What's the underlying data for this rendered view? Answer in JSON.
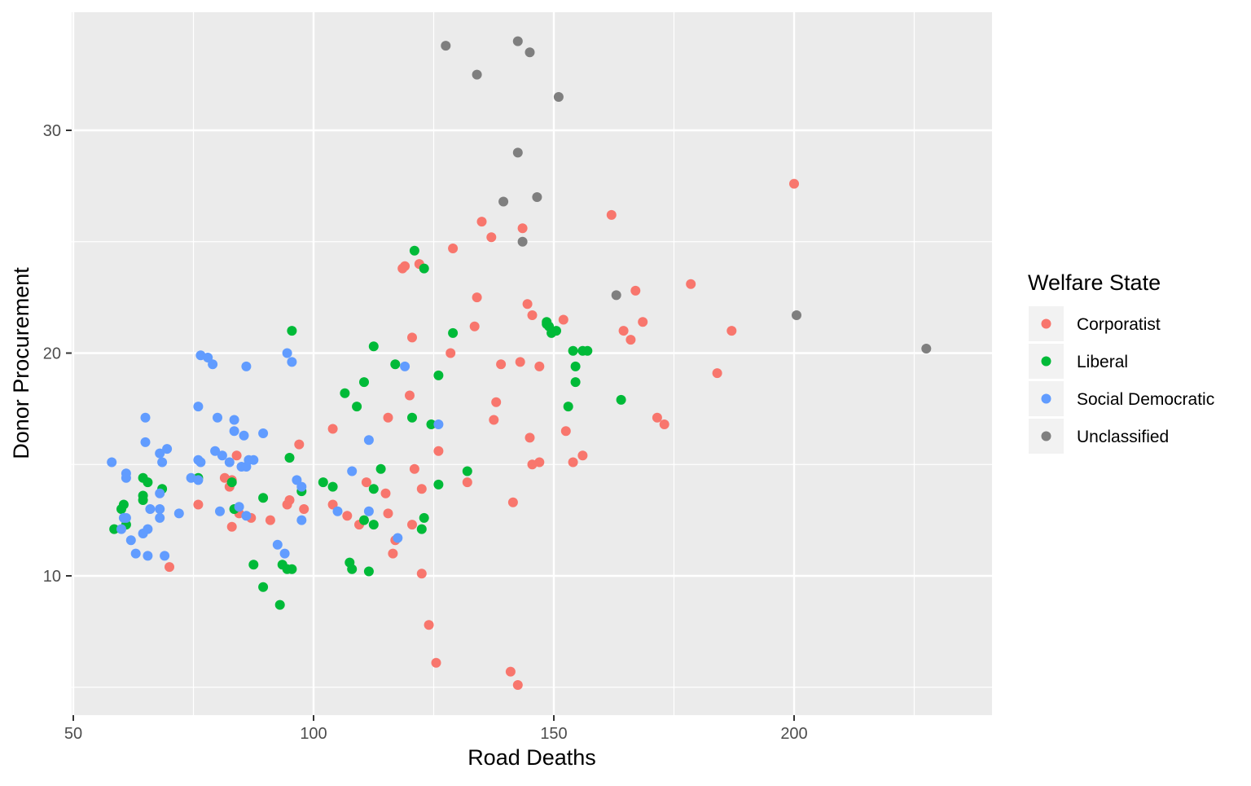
{
  "chart_data": {
    "type": "scatter",
    "title": "",
    "xlabel": "Road Deaths",
    "ylabel": "Donor Procurement",
    "xlim": [
      50,
      240
    ],
    "ylim": [
      5,
      35
    ],
    "x_ticks": [
      50,
      100,
      150,
      200
    ],
    "y_ticks": [
      10,
      20,
      30
    ],
    "x_tick_labels": [
      "50",
      "100",
      "150",
      "200"
    ],
    "y_tick_labels": [
      "10",
      "20",
      "30"
    ],
    "grid": true,
    "legend": {
      "title": "Welfare State",
      "position": "right",
      "entries": [
        "Corporatist",
        "Liberal",
        "Social Democratic",
        "Unclassified"
      ]
    },
    "colors": {
      "panel": "#EBEBEB",
      "grid": "#FFFFFF",
      "Corporatist": "#F8766D",
      "Liberal": "#00BA38",
      "Social Democratic": "#619CFF",
      "Unclassified": "#7F7F7F"
    },
    "series": [
      {
        "name": "Corporatist",
        "points": [
          [
            200,
            27.6
          ],
          [
            162,
            26.2
          ],
          [
            135,
            25.9
          ],
          [
            143.5,
            25.6
          ],
          [
            137,
            25.2
          ],
          [
            129,
            24.7
          ],
          [
            122,
            24
          ],
          [
            119,
            23.9
          ],
          [
            118.5,
            23.8
          ],
          [
            178.5,
            23.1
          ],
          [
            167,
            22.8
          ],
          [
            134,
            22.5
          ],
          [
            144.5,
            22.2
          ],
          [
            145.5,
            21.7
          ],
          [
            152,
            21.5
          ],
          [
            168.5,
            21.4
          ],
          [
            133.5,
            21.2
          ],
          [
            164.5,
            21
          ],
          [
            187,
            21
          ],
          [
            120.5,
            20.7
          ],
          [
            166,
            20.6
          ],
          [
            128.5,
            20
          ],
          [
            139,
            19.5
          ],
          [
            143,
            19.6
          ],
          [
            147,
            19.4
          ],
          [
            184,
            19.1
          ],
          [
            120,
            18.1
          ],
          [
            138,
            17.8
          ],
          [
            115.5,
            17.1
          ],
          [
            137.5,
            17
          ],
          [
            171.5,
            17.1
          ],
          [
            173,
            16.8
          ],
          [
            104,
            16.6
          ],
          [
            152.5,
            16.5
          ],
          [
            145,
            16.2
          ],
          [
            97,
            15.9
          ],
          [
            126,
            15.6
          ],
          [
            84,
            15.4
          ],
          [
            156,
            15.4
          ],
          [
            154,
            15.1
          ],
          [
            147,
            15.1
          ],
          [
            145.5,
            15
          ],
          [
            121,
            14.8
          ],
          [
            81.5,
            14.4
          ],
          [
            83,
            14.3
          ],
          [
            82.5,
            14
          ],
          [
            111,
            14.2
          ],
          [
            132,
            14.2
          ],
          [
            122.5,
            13.9
          ],
          [
            115,
            13.7
          ],
          [
            95,
            13.4
          ],
          [
            94.5,
            13.2
          ],
          [
            104,
            13.2
          ],
          [
            141.5,
            13.3
          ],
          [
            76,
            13.2
          ],
          [
            98,
            13
          ],
          [
            84.5,
            12.8
          ],
          [
            107,
            12.7
          ],
          [
            115.5,
            12.8
          ],
          [
            87,
            12.6
          ],
          [
            91,
            12.5
          ],
          [
            83,
            12.2
          ],
          [
            109.5,
            12.3
          ],
          [
            120.5,
            12.3
          ],
          [
            117,
            11.6
          ],
          [
            116.5,
            11
          ],
          [
            70,
            10.4
          ],
          [
            122.5,
            10.1
          ],
          [
            124,
            7.8
          ],
          [
            125.5,
            6.1
          ],
          [
            141,
            5.7
          ],
          [
            142.5,
            5.1
          ]
        ]
      },
      {
        "name": "Liberal",
        "points": [
          [
            121,
            24.6
          ],
          [
            123,
            23.8
          ],
          [
            95.5,
            21
          ],
          [
            148.5,
            21.4
          ],
          [
            149,
            21.2
          ],
          [
            148.5,
            21.3
          ],
          [
            149.5,
            20.9
          ],
          [
            150.5,
            21
          ],
          [
            129,
            20.9
          ],
          [
            112.5,
            20.3
          ],
          [
            154,
            20.1
          ],
          [
            156,
            20.1
          ],
          [
            157,
            20.1
          ],
          [
            117,
            19.5
          ],
          [
            154.5,
            19.4
          ],
          [
            126,
            19
          ],
          [
            110.5,
            18.7
          ],
          [
            154.5,
            18.7
          ],
          [
            106.5,
            18.2
          ],
          [
            109,
            17.6
          ],
          [
            153,
            17.6
          ],
          [
            164,
            17.9
          ],
          [
            120.5,
            17.1
          ],
          [
            124.5,
            16.8
          ],
          [
            95,
            15.3
          ],
          [
            114,
            14.8
          ],
          [
            132,
            14.7
          ],
          [
            64.5,
            14.4
          ],
          [
            76,
            14.4
          ],
          [
            83,
            14.2
          ],
          [
            65.5,
            14.2
          ],
          [
            102,
            14.2
          ],
          [
            104,
            14
          ],
          [
            112.5,
            13.9
          ],
          [
            126,
            14.1
          ],
          [
            68.5,
            13.9
          ],
          [
            97.5,
            13.8
          ],
          [
            64.5,
            13.6
          ],
          [
            64.5,
            13.4
          ],
          [
            89.5,
            13.5
          ],
          [
            60.5,
            13.2
          ],
          [
            60,
            13
          ],
          [
            83.5,
            13
          ],
          [
            110.5,
            12.5
          ],
          [
            123,
            12.6
          ],
          [
            112.5,
            12.3
          ],
          [
            61,
            12.3
          ],
          [
            58.5,
            12.1
          ],
          [
            122.5,
            12.1
          ],
          [
            107.5,
            10.6
          ],
          [
            87.5,
            10.5
          ],
          [
            93.5,
            10.5
          ],
          [
            108,
            10.3
          ],
          [
            94.5,
            10.3
          ],
          [
            95.5,
            10.3
          ],
          [
            111.5,
            10.2
          ],
          [
            89.5,
            9.5
          ],
          [
            93,
            8.7
          ]
        ]
      },
      {
        "name": "Social Democratic",
        "points": [
          [
            76.5,
            19.9
          ],
          [
            78,
            19.8
          ],
          [
            79,
            19.5
          ],
          [
            86,
            19.4
          ],
          [
            94.5,
            20
          ],
          [
            95.5,
            19.6
          ],
          [
            119,
            19.4
          ],
          [
            76,
            17.6
          ],
          [
            65,
            17.1
          ],
          [
            80,
            17.1
          ],
          [
            83.5,
            17
          ],
          [
            126,
            16.8
          ],
          [
            83.5,
            16.5
          ],
          [
            85.5,
            16.3
          ],
          [
            89.5,
            16.4
          ],
          [
            111.5,
            16.1
          ],
          [
            65,
            16
          ],
          [
            69.5,
            15.7
          ],
          [
            79.5,
            15.6
          ],
          [
            68,
            15.5
          ],
          [
            81,
            15.4
          ],
          [
            58,
            15.1
          ],
          [
            68.5,
            15.1
          ],
          [
            76,
            15.2
          ],
          [
            76.5,
            15.1
          ],
          [
            82.5,
            15.1
          ],
          [
            85,
            14.9
          ],
          [
            86,
            14.9
          ],
          [
            86.5,
            15.2
          ],
          [
            87.5,
            15.2
          ],
          [
            61,
            14.6
          ],
          [
            61,
            14.4
          ],
          [
            74.5,
            14.4
          ],
          [
            76,
            14.3
          ],
          [
            96.5,
            14.3
          ],
          [
            97.5,
            14
          ],
          [
            108,
            14.7
          ],
          [
            68,
            13.7
          ],
          [
            66,
            13
          ],
          [
            68,
            13
          ],
          [
            72,
            12.8
          ],
          [
            80.5,
            12.9
          ],
          [
            84.5,
            13.1
          ],
          [
            105,
            12.9
          ],
          [
            111.5,
            12.9
          ],
          [
            86,
            12.7
          ],
          [
            60.5,
            12.6
          ],
          [
            61,
            12.6
          ],
          [
            68,
            12.6
          ],
          [
            97.5,
            12.5
          ],
          [
            60,
            12.1
          ],
          [
            65.5,
            12.1
          ],
          [
            64.5,
            11.9
          ],
          [
            62,
            11.6
          ],
          [
            117.5,
            11.7
          ],
          [
            92.5,
            11.4
          ],
          [
            63,
            11
          ],
          [
            65.5,
            10.9
          ],
          [
            69,
            10.9
          ],
          [
            94,
            11
          ]
        ]
      },
      {
        "name": "Unclassified",
        "points": [
          [
            127.5,
            33.8
          ],
          [
            142.5,
            34
          ],
          [
            145,
            33.5
          ],
          [
            134,
            32.5
          ],
          [
            151,
            31.5
          ],
          [
            142.5,
            29
          ],
          [
            139.5,
            26.8
          ],
          [
            146.5,
            27
          ],
          [
            143.5,
            25
          ],
          [
            163,
            22.6
          ],
          [
            200.5,
            21.7
          ],
          [
            227.5,
            20.2
          ]
        ]
      }
    ]
  }
}
